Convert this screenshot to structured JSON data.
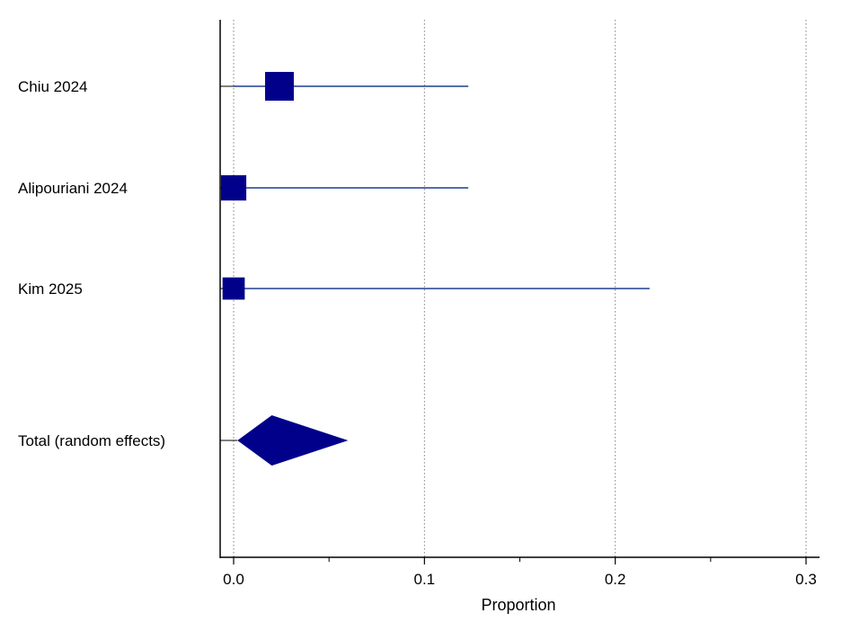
{
  "chart_data": {
    "type": "forest",
    "xlabel": "Proportion",
    "xlim": [
      0,
      0.3
    ],
    "xticks": [
      0,
      0.1,
      0.2,
      0.3
    ],
    "xtick_labels": [
      "0.0",
      "0.1",
      "0.2",
      "0.3"
    ],
    "minor_ticks": [
      0.05,
      0.15,
      0.25
    ],
    "grid": "vertical dotted at major ticks",
    "color": "#00008B",
    "studies": [
      {
        "label": "Chiu 2024",
        "estimate": 0.024,
        "ci_low": 0.0,
        "ci_high": 0.123,
        "weight": 0.42
      },
      {
        "label": "Alipouriani 2024",
        "estimate": 0.0,
        "ci_low": 0.0,
        "ci_high": 0.123,
        "weight": 0.33
      },
      {
        "label": "Kim 2025",
        "estimate": 0.0,
        "ci_low": 0.0,
        "ci_high": 0.218,
        "weight": 0.25
      }
    ],
    "total": {
      "label": "Total (random effects)",
      "estimate": 0.02,
      "ci_low": 0.002,
      "ci_high": 0.06
    }
  }
}
